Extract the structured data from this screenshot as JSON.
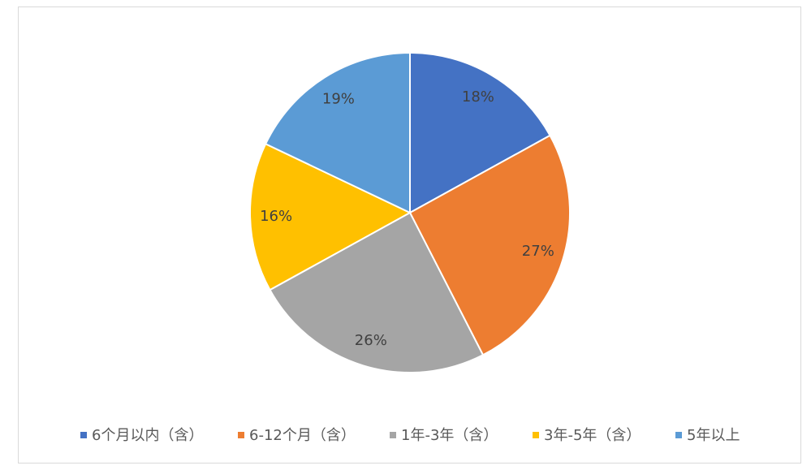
{
  "chart_data": {
    "type": "pie",
    "categories": [
      "6个月以内（含）",
      "6-12个月（含）",
      "1年-3年（含）",
      "3年-5年（含）",
      "5年以上"
    ],
    "values": [
      18,
      27,
      26,
      16,
      19
    ],
    "value_labels": [
      "18%",
      "27%",
      "26%",
      "16%",
      "19%"
    ],
    "colors": [
      "#4472c4",
      "#ed7d31",
      "#a5a5a5",
      "#ffc000",
      "#5b9bd5"
    ],
    "legend": "bottom"
  }
}
